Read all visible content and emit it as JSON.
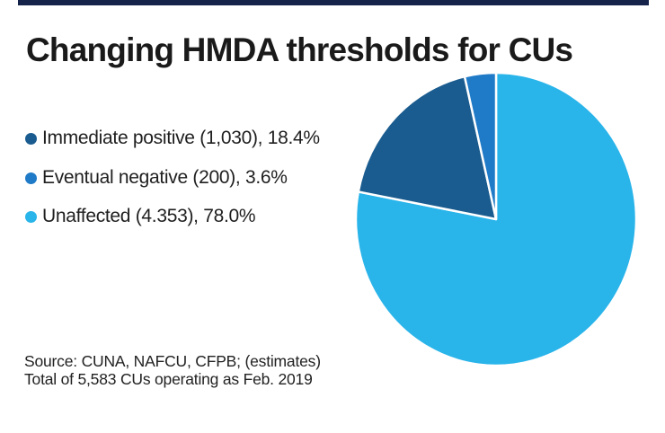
{
  "page": {
    "background": "#ffffff",
    "top_bar_color": "#15234a"
  },
  "title": "Changing HMDA thresholds for CUs",
  "legend": [
    {
      "label": "Immediate positive (1,030), 18.4%",
      "color": "#1a5c8f"
    },
    {
      "label": "Eventual negative (200), 3.6%",
      "color": "#1f7ac7"
    },
    {
      "label": "Unaffected (4.353), 78.0%",
      "color": "#29b4ea"
    }
  ],
  "source_lines": [
    "Source: CUNA, NAFCU, CFPB; (estimates)",
    "Total of 5,583 CUs operating as Feb. 2019"
  ],
  "chart_data": {
    "type": "pie",
    "title": "Changing HMDA thresholds for CUs",
    "segments": [
      {
        "label": "Immediate positive",
        "count": 1030,
        "pct": 18.4,
        "color": "#1a5c8f"
      },
      {
        "label": "Eventual negative",
        "count": 200,
        "pct": 3.6,
        "color": "#1f7ac7"
      },
      {
        "label": "Unaffected",
        "count": 4353,
        "pct": 78.0,
        "color": "#29b4ea"
      }
    ],
    "clockwise_order_from_top": [
      "Unaffected",
      "Immediate positive",
      "Eventual negative"
    ],
    "separator_color": "#ffffff",
    "legend_position": "left",
    "source": "Source: CUNA, NAFCU, CFPB; (estimates)",
    "total_label": "Total of 5,583 CUs operating as Feb. 2019"
  }
}
